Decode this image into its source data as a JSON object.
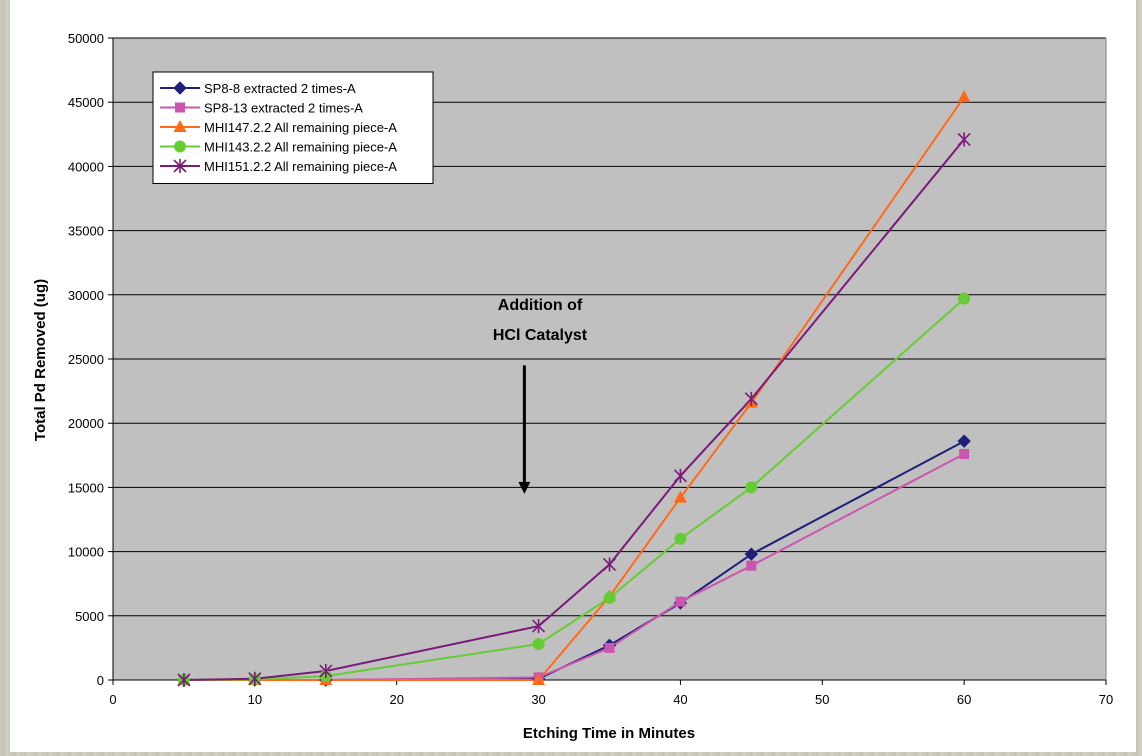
{
  "chart_data": {
    "type": "line",
    "title": "",
    "xlabel": "Etching Time in Minutes",
    "ylabel": "Total Pd Removed (ug)",
    "xlim": [
      0,
      70
    ],
    "ylim": [
      0,
      50000
    ],
    "x_ticks": [
      "0",
      "10",
      "20",
      "30",
      "40",
      "50",
      "60",
      "70"
    ],
    "y_ticks": [
      "0",
      "5000",
      "10000",
      "15000",
      "20000",
      "25000",
      "30000",
      "35000",
      "40000",
      "45000",
      "50000"
    ],
    "grid": "horizontal",
    "legend_position": "top-left",
    "series": [
      {
        "name": "SP8-8 extracted 2 times-A",
        "color": "#1f1f7a",
        "marker": "diamond",
        "x": [
          5,
          10,
          15,
          30,
          35,
          40,
          45,
          60
        ],
        "y": [
          0,
          0,
          0,
          100,
          2700,
          6000,
          9800,
          18600
        ]
      },
      {
        "name": "SP8-13 extracted 2 times-A",
        "color": "#cc55b0",
        "marker": "square",
        "x": [
          5,
          10,
          15,
          30,
          35,
          40,
          45,
          60
        ],
        "y": [
          0,
          0,
          0,
          200,
          2500,
          6100,
          8900,
          17600
        ]
      },
      {
        "name": "MHI147.2.2 All remaining piece-A",
        "color": "#ff6a1a",
        "marker": "triangle",
        "x": [
          5,
          10,
          15,
          30,
          35,
          40,
          45,
          60
        ],
        "y": [
          0,
          0,
          0,
          0,
          6500,
          14200,
          21600,
          45400
        ]
      },
      {
        "name": "MHI143.2.2 All remaining piece-A",
        "color": "#66cc33",
        "marker": "circle",
        "x": [
          5,
          10,
          15,
          30,
          35,
          40,
          45,
          60
        ],
        "y": [
          0,
          50,
          300,
          2800,
          6400,
          11000,
          15000,
          29700
        ]
      },
      {
        "name": "MHI151.2.2 All remaining piece-A",
        "color": "#7a1a7a",
        "marker": "star",
        "x": [
          5,
          10,
          15,
          30,
          35,
          40,
          45,
          60
        ],
        "y": [
          0,
          100,
          700,
          4200,
          9000,
          15900,
          21900,
          42100
        ]
      }
    ],
    "annotation": {
      "lines": [
        "Addition of",
        "HCl Catalyst"
      ],
      "arrow_x": 29,
      "arrow_y_top": 24500,
      "arrow_y_bottom": 14500
    },
    "plot_area_color": "#c0c0c0"
  }
}
